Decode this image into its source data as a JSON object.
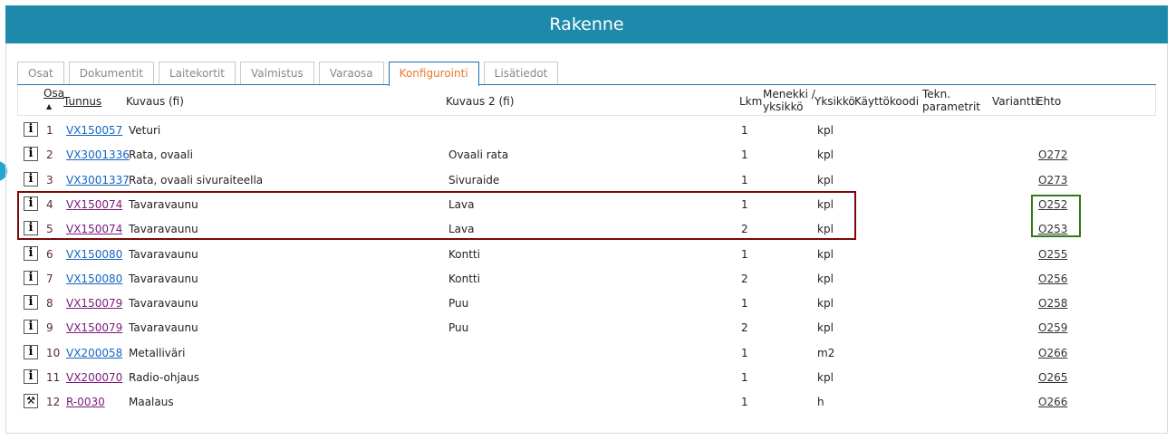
{
  "title": "Rakenne",
  "tabs": [
    {
      "label": "Osat"
    },
    {
      "label": "Dokumentit"
    },
    {
      "label": "Laitekortit"
    },
    {
      "label": "Valmistus"
    },
    {
      "label": "Varaosa"
    },
    {
      "label": "Konfigurointi",
      "active": true
    },
    {
      "label": "Lisätiedot"
    }
  ],
  "columns": {
    "osa": "Osa",
    "tunnus": "Tunnus",
    "kuvaus": "Kuvaus (fi)",
    "kuvaus2": "Kuvaus 2 (fi)",
    "lkm": "Lkm",
    "menekki": "Menekki / yksikkö",
    "yksikko": "Yksikkö",
    "kayttokoodi": "Käyttökoodi",
    "tekn": "Tekn. parametrit",
    "variantti": "Variantti",
    "ehto": "Ehto"
  },
  "rows": [
    {
      "icon": "info",
      "osa": "1",
      "tunnus": "VX150057",
      "visited": false,
      "kuvaus": "Veturi",
      "kuvaus2": "",
      "lkm": "1",
      "yksikko": "kpl",
      "ehto": ""
    },
    {
      "icon": "info",
      "osa": "2",
      "tunnus": "VX3001336",
      "visited": false,
      "kuvaus": "Rata, ovaali",
      "kuvaus2": "Ovaali rata",
      "lkm": "1",
      "yksikko": "kpl",
      "ehto": "O272"
    },
    {
      "icon": "info",
      "osa": "3",
      "tunnus": "VX3001337",
      "visited": false,
      "kuvaus": "Rata, ovaali sivuraiteella",
      "kuvaus2": "Sivuraide",
      "lkm": "1",
      "yksikko": "kpl",
      "ehto": "O273"
    },
    {
      "icon": "info",
      "osa": "4",
      "tunnus": "VX150074",
      "visited": true,
      "kuvaus": "Tavaravaunu",
      "kuvaus2": "Lava",
      "lkm": "1",
      "yksikko": "kpl",
      "ehto": "O252"
    },
    {
      "icon": "info",
      "osa": "5",
      "tunnus": "VX150074",
      "visited": true,
      "kuvaus": "Tavaravaunu",
      "kuvaus2": "Lava",
      "lkm": "2",
      "yksikko": "kpl",
      "ehto": "O253"
    },
    {
      "icon": "info",
      "osa": "6",
      "tunnus": "VX150080",
      "visited": false,
      "kuvaus": "Tavaravaunu",
      "kuvaus2": "Kontti",
      "lkm": "1",
      "yksikko": "kpl",
      "ehto": "O255"
    },
    {
      "icon": "info",
      "osa": "7",
      "tunnus": "VX150080",
      "visited": false,
      "kuvaus": "Tavaravaunu",
      "kuvaus2": "Kontti",
      "lkm": "2",
      "yksikko": "kpl",
      "ehto": "O256"
    },
    {
      "icon": "info",
      "osa": "8",
      "tunnus": "VX150079",
      "visited": true,
      "kuvaus": "Tavaravaunu",
      "kuvaus2": "Puu",
      "lkm": "1",
      "yksikko": "kpl",
      "ehto": "O258"
    },
    {
      "icon": "info",
      "osa": "9",
      "tunnus": "VX150079",
      "visited": true,
      "kuvaus": "Tavaravaunu",
      "kuvaus2": "Puu",
      "lkm": "2",
      "yksikko": "kpl",
      "ehto": "O259"
    },
    {
      "icon": "info",
      "osa": "10",
      "tunnus": "VX200058",
      "visited": false,
      "kuvaus": "Metalliväri",
      "kuvaus2": "",
      "lkm": "1",
      "yksikko": "m2",
      "ehto": "O266"
    },
    {
      "icon": "info",
      "osa": "11",
      "tunnus": "VX200070",
      "visited": true,
      "kuvaus": "Radio-ohjaus",
      "kuvaus2": "",
      "lkm": "1",
      "yksikko": "kpl",
      "ehto": "O265"
    },
    {
      "icon": "tools",
      "osa": "12",
      "tunnus": "R-0030",
      "visited": true,
      "kuvaus": "Maalaus",
      "kuvaus2": "",
      "lkm": "1",
      "yksikko": "h",
      "ehto": "O266"
    }
  ],
  "colors": {
    "header": "#1e8aab",
    "active_tab": "#e8772e",
    "highlight_rows": "#7a0a0a",
    "highlight_ehto": "#2e7d12"
  }
}
